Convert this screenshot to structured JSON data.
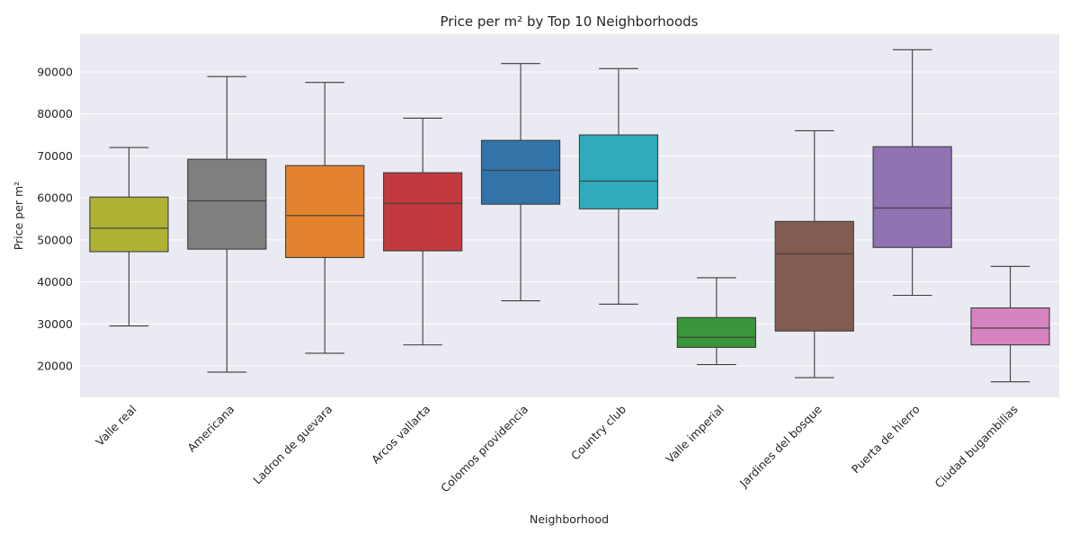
{
  "chart_data": {
    "type": "box",
    "title": "Price per m² by Top 10 Neighborhoods",
    "xlabel": "Neighborhood",
    "ylabel": "Price per m²",
    "ylim": [
      12500,
      99000
    ],
    "yticks": [
      20000,
      30000,
      40000,
      50000,
      60000,
      70000,
      80000,
      90000
    ],
    "grid": true,
    "categories": [
      "Valle real",
      "Americana",
      "Ladron de guevara",
      "Arcos vallarta",
      "Colomos providencia",
      "Country club",
      "Valle imperial",
      "Jardines del bosque",
      "Puerta de hierro",
      "Ciudad bugambilias"
    ],
    "series": [
      {
        "category": "Valle real",
        "whisker_low": 29500,
        "q1": 47200,
        "median": 52800,
        "q3": 60200,
        "whisker_high": 72000,
        "color": "#aeb235"
      },
      {
        "category": "Americana",
        "whisker_low": 18500,
        "q1": 47800,
        "median": 59300,
        "q3": 69200,
        "whisker_high": 88900,
        "color": "#7f7f7f"
      },
      {
        "category": "Ladron de guevara",
        "whisker_low": 23000,
        "q1": 45800,
        "median": 55800,
        "q3": 67700,
        "whisker_high": 87500,
        "color": "#e5822e"
      },
      {
        "category": "Arcos vallarta",
        "whisker_low": 25000,
        "q1": 47400,
        "median": 58700,
        "q3": 66000,
        "whisker_high": 79000,
        "color": "#c33a3e"
      },
      {
        "category": "Colomos providencia",
        "whisker_low": 35500,
        "q1": 58500,
        "median": 66600,
        "q3": 73700,
        "whisker_high": 92000,
        "color": "#3374a8"
      },
      {
        "category": "Country club",
        "whisker_low": 34700,
        "q1": 57400,
        "median": 64000,
        "q3": 75000,
        "whisker_high": 90800,
        "color": "#2fabbd"
      },
      {
        "category": "Valle imperial",
        "whisker_low": 20300,
        "q1": 24400,
        "median": 26800,
        "q3": 31500,
        "whisker_high": 41000,
        "color": "#3a963b"
      },
      {
        "category": "Jardines del bosque",
        "whisker_low": 17200,
        "q1": 28300,
        "median": 46700,
        "q3": 54400,
        "whisker_high": 76000,
        "color": "#835c51"
      },
      {
        "category": "Puerta de hierro",
        "whisker_low": 36800,
        "q1": 48200,
        "median": 57600,
        "q3": 72200,
        "whisker_high": 95300,
        "color": "#9172b2"
      },
      {
        "category": "Ciudad bugambilias",
        "whisker_low": 16200,
        "q1": 25000,
        "median": 29000,
        "q3": 33800,
        "whisker_high": 43700,
        "color": "#d683bf"
      }
    ]
  },
  "colors": {
    "plot_background": "#eaeaf2",
    "grid": "#ffffff",
    "line": "#3d3d3d",
    "text": "#262626"
  }
}
